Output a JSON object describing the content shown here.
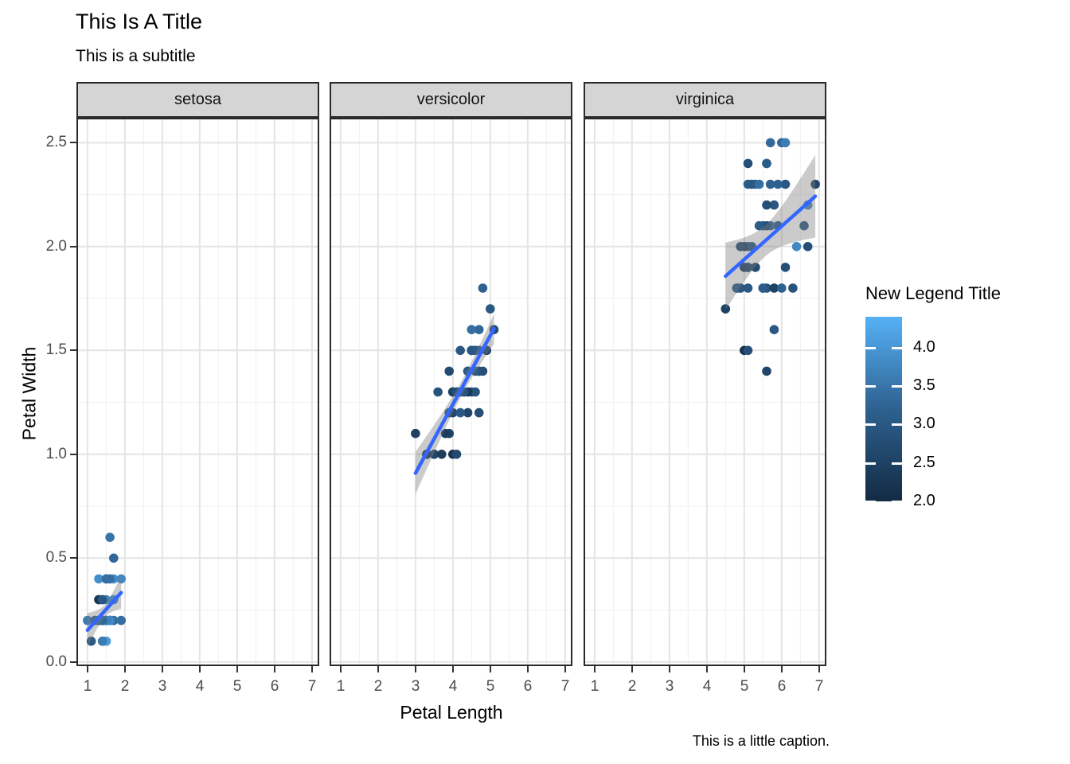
{
  "header": {
    "title": "This Is A Title",
    "subtitle": "This is a subtitle"
  },
  "caption": "This is a little caption.",
  "axes": {
    "x_title": "Petal Length",
    "y_title": "Petal Width",
    "x_tick_labels": [
      "1",
      "2",
      "3",
      "4",
      "5",
      "6",
      "7"
    ],
    "y_tick_labels": [
      "0.0",
      "0.5",
      "1.0",
      "1.5",
      "2.0",
      "2.5"
    ]
  },
  "legend": {
    "title": "New Legend Title",
    "tick_labels": [
      "4.0",
      "3.5",
      "3.0",
      "2.5",
      "2.0"
    ],
    "tick_values": [
      4.0,
      3.5,
      3.0,
      2.5,
      2.0
    ],
    "domain": [
      2.0,
      4.4
    ],
    "color_low": "#132B43",
    "color_mid": "#2E6190",
    "color_high": "#56B1F7"
  },
  "style": {
    "strip_background": "#D5D5D5",
    "panel_border": "#2a2a2a",
    "grid_major": "#e4e4e4",
    "grid_minor": "#f0f0f0",
    "smooth_line": "#3366FF",
    "ribbon": "rgba(125,125,125,0.40)",
    "tick_text": "#4d4d4d"
  },
  "chart_data": {
    "type": "scatter",
    "title": "This Is A Title",
    "subtitle": "This is a subtitle",
    "caption": "This is a little caption.",
    "xlabel": "Petal Length",
    "ylabel": "Petal Width",
    "color_label": "New Legend Title",
    "xlim": [
      0.705,
      7.195
    ],
    "ylim": [
      -0.02,
      2.62
    ],
    "x_breaks": [
      1,
      2,
      3,
      4,
      5,
      6,
      7
    ],
    "x_minor_breaks": [
      1.5,
      2.5,
      3.5,
      4.5,
      5.5,
      6.5
    ],
    "y_breaks": [
      0,
      0.5,
      1,
      1.5,
      2,
      2.5
    ],
    "y_minor_breaks": [
      0.25,
      0.75,
      1.25,
      1.75,
      2.25
    ],
    "color_domain": [
      2.0,
      4.4
    ],
    "legend_position": "right",
    "grid": true,
    "point_fields": [
      "petal_length",
      "petal_width",
      "sepal_width"
    ],
    "facets": [
      {
        "name": "setosa",
        "points": [
          [
            1.4,
            0.2,
            3.5
          ],
          [
            1.4,
            0.2,
            3.0
          ],
          [
            1.3,
            0.2,
            3.2
          ],
          [
            1.5,
            0.2,
            3.1
          ],
          [
            1.4,
            0.2,
            3.6
          ],
          [
            1.7,
            0.4,
            3.9
          ],
          [
            1.4,
            0.3,
            3.4
          ],
          [
            1.5,
            0.2,
            3.4
          ],
          [
            1.4,
            0.2,
            2.9
          ],
          [
            1.5,
            0.1,
            3.1
          ],
          [
            1.5,
            0.2,
            3.7
          ],
          [
            1.6,
            0.2,
            3.4
          ],
          [
            1.4,
            0.1,
            3.0
          ],
          [
            1.1,
            0.1,
            3.0
          ],
          [
            1.2,
            0.2,
            4.0
          ],
          [
            1.5,
            0.4,
            4.4
          ],
          [
            1.3,
            0.4,
            3.9
          ],
          [
            1.4,
            0.3,
            3.5
          ],
          [
            1.7,
            0.3,
            3.8
          ],
          [
            1.5,
            0.3,
            3.8
          ],
          [
            1.7,
            0.2,
            3.4
          ],
          [
            1.5,
            0.4,
            3.7
          ],
          [
            1.0,
            0.2,
            3.6
          ],
          [
            1.7,
            0.5,
            3.3
          ],
          [
            1.9,
            0.2,
            3.4
          ],
          [
            1.6,
            0.2,
            3.0
          ],
          [
            1.6,
            0.4,
            3.4
          ],
          [
            1.5,
            0.2,
            3.5
          ],
          [
            1.4,
            0.2,
            3.4
          ],
          [
            1.6,
            0.2,
            3.2
          ],
          [
            1.6,
            0.2,
            3.1
          ],
          [
            1.5,
            0.4,
            3.4
          ],
          [
            1.5,
            0.1,
            4.1
          ],
          [
            1.4,
            0.2,
            4.2
          ],
          [
            1.5,
            0.2,
            3.1
          ],
          [
            1.2,
            0.2,
            3.2
          ],
          [
            1.3,
            0.2,
            3.5
          ],
          [
            1.4,
            0.1,
            3.6
          ],
          [
            1.3,
            0.2,
            3.0
          ],
          [
            1.5,
            0.2,
            3.4
          ],
          [
            1.3,
            0.3,
            3.5
          ],
          [
            1.3,
            0.3,
            2.3
          ],
          [
            1.3,
            0.2,
            3.2
          ],
          [
            1.6,
            0.6,
            3.5
          ],
          [
            1.9,
            0.4,
            3.8
          ],
          [
            1.4,
            0.3,
            3.0
          ],
          [
            1.6,
            0.2,
            3.8
          ],
          [
            1.4,
            0.2,
            3.2
          ],
          [
            1.5,
            0.2,
            3.7
          ],
          [
            1.4,
            0.2,
            3.3
          ]
        ],
        "regression": {
          "slope": 0.2012,
          "intercept": -0.0482,
          "n": 50,
          "x_mean": 1.462,
          "sxx": 1.4778,
          "sigma": 0.1005,
          "t_crit": 2.0106,
          "x_range": [
            1.0,
            1.9
          ]
        }
      },
      {
        "name": "versicolor",
        "points": [
          [
            4.7,
            1.4,
            3.2
          ],
          [
            4.5,
            1.5,
            3.2
          ],
          [
            4.9,
            1.5,
            3.1
          ],
          [
            4.0,
            1.3,
            2.3
          ],
          [
            4.6,
            1.5,
            2.8
          ],
          [
            4.5,
            1.3,
            2.8
          ],
          [
            4.7,
            1.6,
            3.3
          ],
          [
            3.3,
            1.0,
            2.4
          ],
          [
            4.6,
            1.3,
            2.9
          ],
          [
            3.9,
            1.4,
            2.7
          ],
          [
            3.5,
            1.0,
            2.0
          ],
          [
            4.2,
            1.5,
            3.0
          ],
          [
            4.0,
            1.0,
            2.2
          ],
          [
            4.7,
            1.4,
            2.9
          ],
          [
            3.6,
            1.3,
            2.9
          ],
          [
            4.4,
            1.4,
            3.1
          ],
          [
            4.5,
            1.5,
            3.0
          ],
          [
            4.1,
            1.0,
            2.7
          ],
          [
            4.5,
            1.5,
            2.2
          ],
          [
            3.9,
            1.1,
            2.5
          ],
          [
            4.8,
            1.8,
            3.2
          ],
          [
            4.0,
            1.3,
            2.8
          ],
          [
            4.9,
            1.5,
            2.5
          ],
          [
            4.7,
            1.2,
            2.8
          ],
          [
            4.3,
            1.3,
            2.9
          ],
          [
            4.4,
            1.4,
            3.0
          ],
          [
            4.8,
            1.4,
            2.8
          ],
          [
            5.0,
            1.7,
            3.0
          ],
          [
            4.5,
            1.5,
            2.9
          ],
          [
            3.5,
            1.0,
            2.6
          ],
          [
            3.8,
            1.1,
            2.4
          ],
          [
            3.7,
            1.0,
            2.4
          ],
          [
            3.9,
            1.2,
            2.7
          ],
          [
            5.1,
            1.6,
            2.7
          ],
          [
            4.5,
            1.5,
            3.0
          ],
          [
            4.5,
            1.6,
            3.4
          ],
          [
            4.7,
            1.5,
            3.1
          ],
          [
            4.4,
            1.3,
            2.3
          ],
          [
            4.1,
            1.3,
            3.0
          ],
          [
            4.0,
            1.3,
            2.5
          ],
          [
            4.4,
            1.2,
            2.6
          ],
          [
            4.6,
            1.4,
            3.0
          ],
          [
            4.0,
            1.2,
            2.6
          ],
          [
            3.3,
            1.0,
            2.3
          ],
          [
            4.2,
            1.3,
            2.7
          ],
          [
            4.2,
            1.2,
            3.0
          ],
          [
            4.2,
            1.3,
            2.9
          ],
          [
            4.3,
            1.3,
            2.9
          ],
          [
            3.0,
            1.1,
            2.5
          ],
          [
            4.1,
            1.3,
            2.8
          ]
        ],
        "regression": {
          "slope": 0.3311,
          "intercept": -0.0843,
          "n": 50,
          "x_mean": 4.26,
          "sxx": 10.8198,
          "sigma": 0.1234,
          "t_crit": 2.0106,
          "x_range": [
            3.0,
            5.1
          ]
        }
      },
      {
        "name": "virginica",
        "points": [
          [
            6.0,
            2.5,
            3.3
          ],
          [
            5.1,
            1.9,
            2.7
          ],
          [
            5.9,
            2.1,
            3.0
          ],
          [
            5.6,
            1.8,
            2.9
          ],
          [
            5.8,
            2.2,
            3.0
          ],
          [
            6.6,
            2.1,
            3.0
          ],
          [
            4.5,
            1.7,
            2.5
          ],
          [
            6.3,
            1.8,
            2.9
          ],
          [
            5.8,
            1.8,
            2.5
          ],
          [
            6.1,
            2.5,
            3.6
          ],
          [
            5.1,
            2.0,
            3.2
          ],
          [
            5.3,
            1.9,
            2.7
          ],
          [
            5.5,
            2.1,
            3.0
          ],
          [
            5.0,
            2.0,
            2.5
          ],
          [
            5.1,
            2.4,
            2.8
          ],
          [
            5.3,
            2.3,
            3.2
          ],
          [
            5.5,
            1.8,
            3.0
          ],
          [
            6.7,
            2.2,
            3.8
          ],
          [
            6.9,
            2.3,
            2.6
          ],
          [
            5.0,
            1.5,
            2.2
          ],
          [
            5.7,
            2.3,
            3.2
          ],
          [
            4.9,
            2.0,
            2.8
          ],
          [
            6.7,
            2.0,
            2.8
          ],
          [
            4.9,
            1.8,
            2.7
          ],
          [
            5.7,
            2.1,
            3.3
          ],
          [
            6.0,
            1.8,
            3.2
          ],
          [
            4.8,
            1.8,
            2.8
          ],
          [
            4.9,
            1.8,
            3.0
          ],
          [
            5.6,
            2.1,
            2.8
          ],
          [
            5.8,
            1.6,
            3.0
          ],
          [
            6.1,
            1.9,
            2.8
          ],
          [
            6.4,
            2.0,
            3.8
          ],
          [
            5.6,
            2.2,
            2.8
          ],
          [
            5.1,
            1.5,
            2.8
          ],
          [
            5.6,
            1.4,
            2.6
          ],
          [
            6.1,
            2.3,
            3.0
          ],
          [
            5.6,
            2.4,
            3.4
          ],
          [
            5.5,
            1.8,
            3.1
          ],
          [
            4.8,
            1.8,
            3.0
          ],
          [
            5.4,
            2.1,
            3.1
          ],
          [
            5.6,
            2.4,
            3.1
          ],
          [
            5.1,
            2.3,
            3.1
          ],
          [
            5.1,
            1.9,
            2.7
          ],
          [
            5.9,
            2.3,
            3.2
          ],
          [
            5.7,
            2.5,
            3.3
          ],
          [
            5.2,
            2.3,
            3.0
          ],
          [
            5.0,
            1.9,
            2.5
          ],
          [
            5.2,
            2.0,
            3.0
          ],
          [
            5.4,
            2.3,
            3.4
          ],
          [
            5.1,
            1.8,
            3.0
          ]
        ],
        "regression": {
          "slope": 0.1603,
          "intercept": 1.136,
          "n": 50,
          "x_mean": 5.552,
          "sxx": 14.9248,
          "sigma": 0.2627,
          "t_crit": 2.0106,
          "x_range": [
            4.5,
            6.9
          ]
        }
      }
    ]
  }
}
